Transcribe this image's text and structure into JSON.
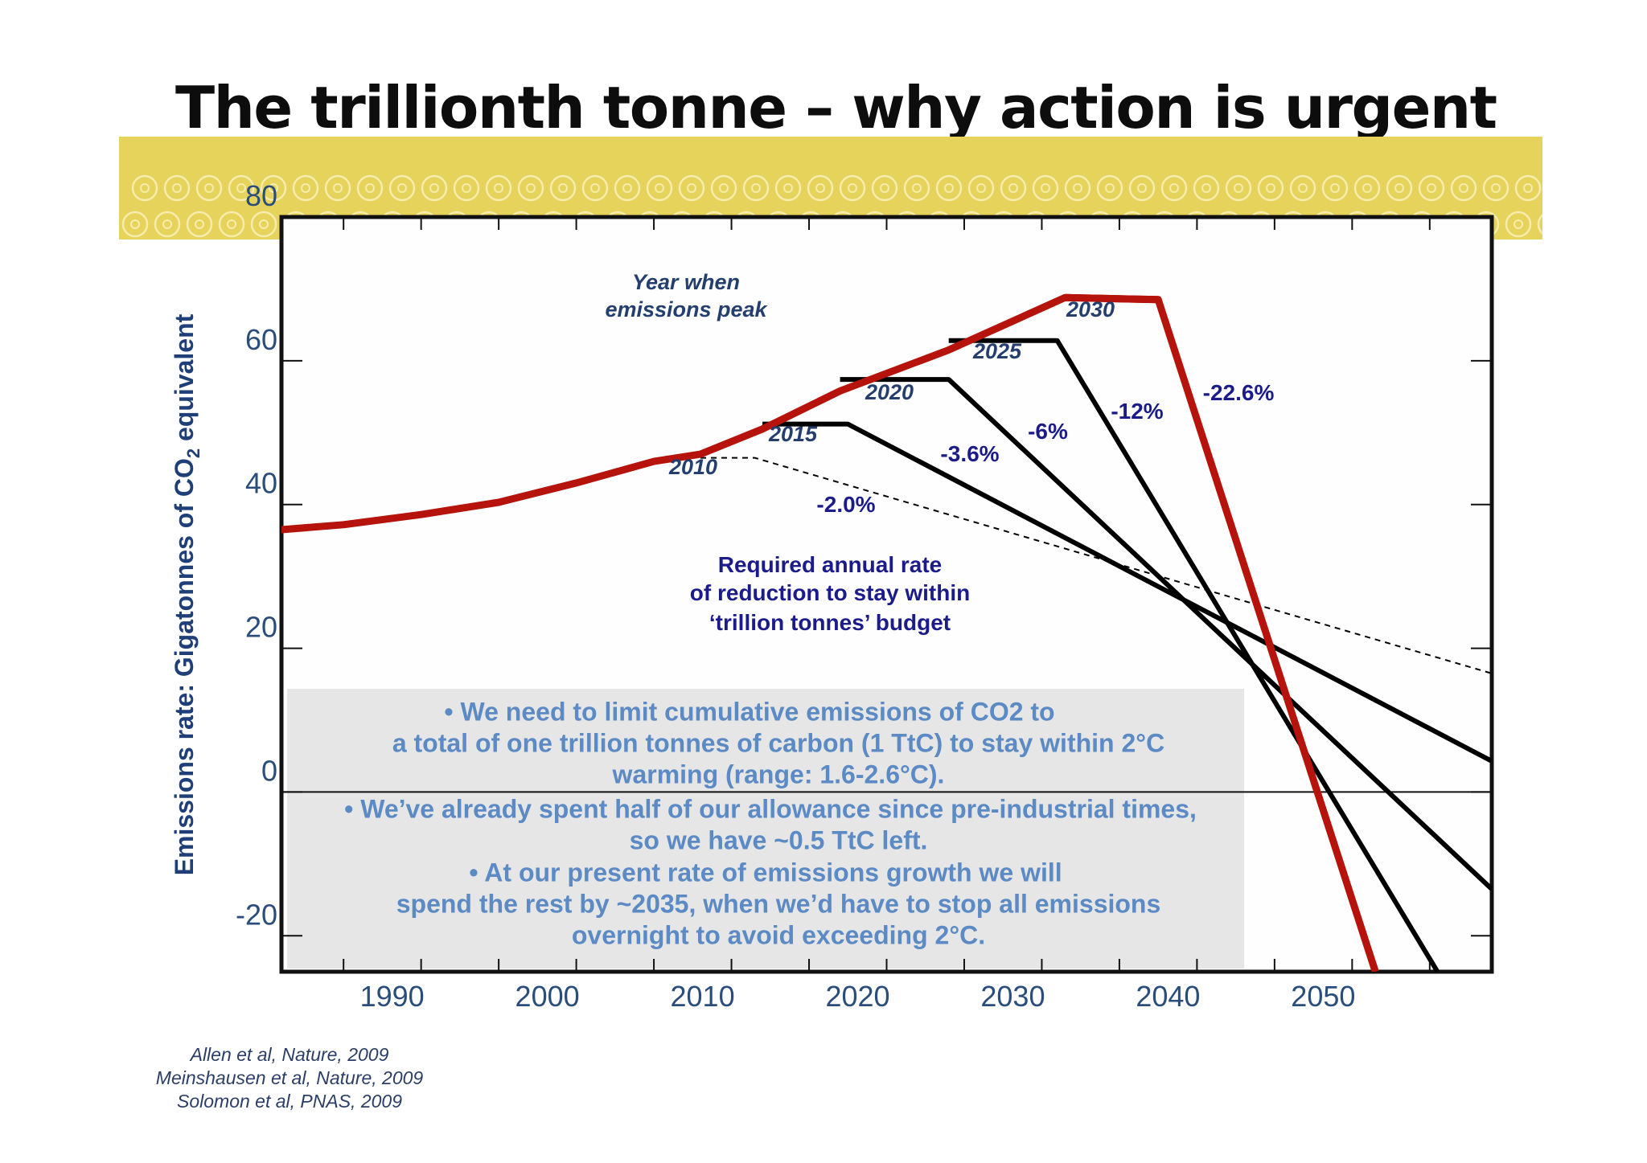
{
  "slide": {
    "title": "The trillionth tonne – why action is urgent",
    "banner_color": "#e6d35c",
    "references": [
      "Allen et al, Nature, 2009",
      "Meinshausen et al, Nature, 2009",
      "Solomon et al, PNAS, 2009"
    ]
  },
  "chart_data": {
    "type": "line",
    "title": "",
    "xlabel": "",
    "ylabel": "Emissions rate: Gigatonnes of CO₂ equivalent",
    "xlim": [
      1981,
      2059
    ],
    "ylim": [
      -25,
      80
    ],
    "xticks": [
      1990,
      2000,
      2010,
      2020,
      2030,
      2040,
      2050
    ],
    "yticks": [
      80,
      60,
      40,
      20,
      0,
      -20
    ],
    "grid": false,
    "legend": "none",
    "history_curve": {
      "color": "#b5130c",
      "points": [
        [
          1981,
          36.5
        ],
        [
          1985,
          37.2
        ],
        [
          1990,
          38.6
        ],
        [
          1995,
          40.3
        ],
        [
          2000,
          43.0
        ],
        [
          2005,
          46.0
        ],
        [
          2008,
          47.0
        ],
        [
          2012,
          50.5
        ],
        [
          2017,
          55.8
        ],
        [
          2024,
          61.5
        ],
        [
          2031.5,
          68.8
        ],
        [
          2037.5,
          68.5
        ]
      ]
    },
    "series": [
      {
        "name": "2010",
        "rate_label": "-2.0%",
        "style": "dashed",
        "color": "#000000",
        "points": [
          [
            2008,
            46.5
          ],
          [
            2011.5,
            46.5
          ],
          [
            2059,
            16.5
          ]
        ]
      },
      {
        "name": "2015",
        "rate_label": "-3.6%",
        "style": "solid",
        "color": "#000000",
        "points": [
          [
            2012,
            51.2
          ],
          [
            2017.5,
            51.2
          ],
          [
            2059,
            4.3
          ]
        ]
      },
      {
        "name": "2020",
        "rate_label": "-6%",
        "style": "solid",
        "color": "#000000",
        "points": [
          [
            2017,
            57.4
          ],
          [
            2024,
            57.4
          ],
          [
            2059,
            -13.5
          ]
        ]
      },
      {
        "name": "2025",
        "rate_label": "-12%",
        "style": "solid",
        "color": "#000000",
        "points": [
          [
            2024,
            62.8
          ],
          [
            2031,
            62.8
          ],
          [
            2055.5,
            -25
          ]
        ]
      },
      {
        "name": "2030",
        "rate_label": "-22.6%",
        "style": "solid",
        "color": "#b5130c",
        "points": [
          [
            2031.5,
            68.8
          ],
          [
            2037.5,
            68.5
          ],
          [
            2051.5,
            -25
          ]
        ]
      }
    ],
    "annotations": {
      "peak_heading": [
        "Year when",
        "emissions peak"
      ],
      "required_rate": [
        "Required annual rate",
        "of reduction to stay within",
        "‘trillion tonnes’ budget"
      ]
    },
    "info_box": [
      "•  We need to limit cumulative emissions of CO2 to",
      "a total of one trillion tonnes of carbon (1 TtC) to stay within 2°C",
      "warming (range: 1.6-2.6°C).",
      "•  We’ve already spent half of our allowance since pre-industrial times,",
      "so we have ~0.5 TtC left.",
      "•  At our present rate of emissions growth we will",
      "spend the rest by ~2035, when we’d have to stop all emissions",
      "overnight to avoid exceeding 2°C."
    ]
  }
}
